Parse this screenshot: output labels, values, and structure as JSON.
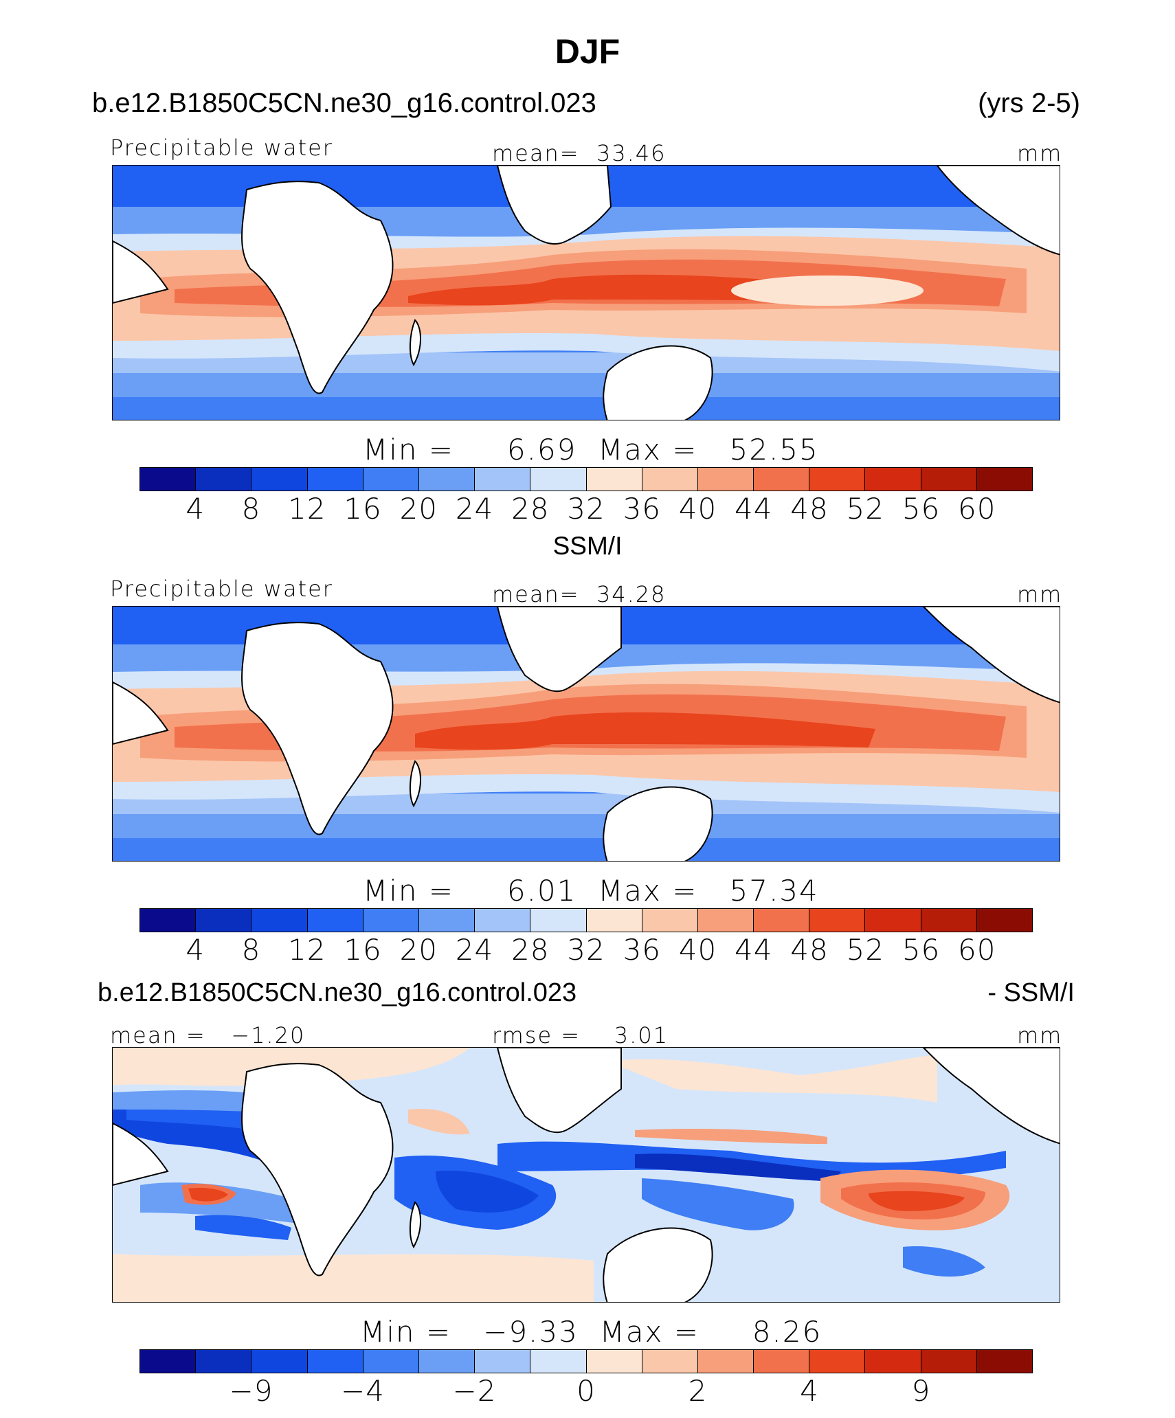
{
  "figure": {
    "title": "DJF",
    "case_name": "b.e12.B1850C5CN.ne30_g16.control.023",
    "years": "(yrs 2-5)",
    "obs_name": "SSM/I",
    "diff_case": "b.e12.B1850C5CN.ne30_g16.control.023",
    "diff_suffix": "- SSM/I"
  },
  "palette": [
    "#0a0a8c",
    "#0a2fbf",
    "#1046e0",
    "#2060f2",
    "#3f7ef5",
    "#6a9ff5",
    "#a3c4f8",
    "#d5e6fb",
    "#fde5d3",
    "#fbc7aa",
    "#f79f7a",
    "#f2714d",
    "#e8441d",
    "#d42a0f",
    "#b51d08",
    "#8a0c03"
  ],
  "panels": [
    {
      "variable": "Precipitable water",
      "mean_label": "mean=",
      "mean_value": "33.46",
      "units": "mm",
      "min_label": "Min =",
      "min_value": "6.69",
      "max_label": "Max =",
      "max_value": "52.55",
      "colorbar_ticks": [
        "4",
        "8",
        "12",
        "16",
        "20",
        "24",
        "28",
        "32",
        "36",
        "40",
        "44",
        "48",
        "52",
        "56",
        "60"
      ]
    },
    {
      "variable": "Precipitable water",
      "mean_label": "mean=",
      "mean_value": "34.28",
      "units": "mm",
      "min_label": "Min =",
      "min_value": "6.01",
      "max_label": "Max =",
      "max_value": "57.34",
      "colorbar_ticks": [
        "4",
        "8",
        "12",
        "16",
        "20",
        "24",
        "28",
        "32",
        "36",
        "40",
        "44",
        "48",
        "52",
        "56",
        "60"
      ]
    },
    {
      "mean_label": "mean =",
      "mean_value": "−1.20",
      "rmse_label": "rmse =",
      "rmse_value": "3.01",
      "units": "mm",
      "min_label": "Min =",
      "min_value": "−9.33",
      "max_label": "Max =",
      "max_value": "8.26",
      "colorbar_ticks": [
        "−9",
        "−4",
        "−2",
        "0",
        "2",
        "4",
        "9"
      ]
    }
  ]
}
